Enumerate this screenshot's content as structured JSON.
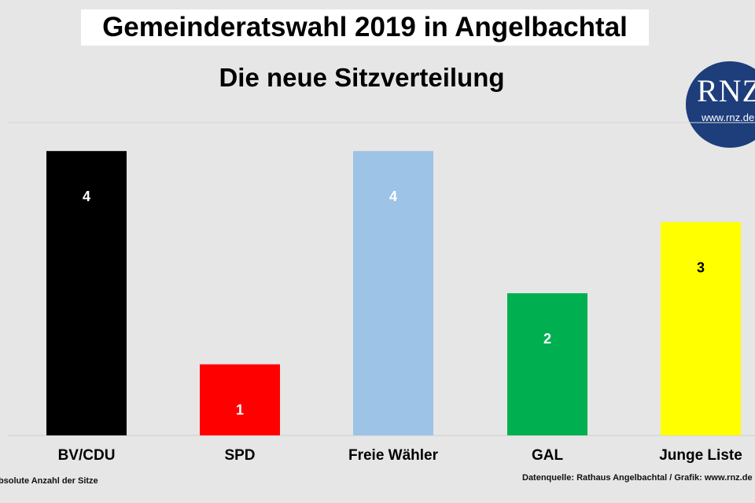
{
  "chart_data": {
    "type": "bar",
    "title": "Gemeinderatswahl 2019 in Angelbachtal",
    "subtitle": "Die neue Sitzverteilung",
    "categories": [
      "BV/CDU",
      "SPD",
      "Freie Wähler",
      "GAL",
      "Junge Liste"
    ],
    "values": [
      4,
      1,
      4,
      2,
      3
    ],
    "data_labels": [
      "4",
      "1",
      "4",
      "2",
      "3"
    ],
    "colors": [
      "#000000",
      "#ff0000",
      "#9dc3e6",
      "#00b050",
      "#ffff00"
    ],
    "label_colors": [
      "#ffffff",
      "#ffffff",
      "#ffffff",
      "#ffffff",
      "#000000"
    ],
    "ylim": [
      0,
      4.4
    ],
    "grid": false,
    "legend": "none"
  },
  "logo": {
    "text": "RNZ",
    "url": "www.rnz.de"
  },
  "footnotes": {
    "left": "Absolute Anzahl der Sitze",
    "right": "Datenquelle: Rathaus Angelbachtal / Grafik: www.rnz.de"
  }
}
